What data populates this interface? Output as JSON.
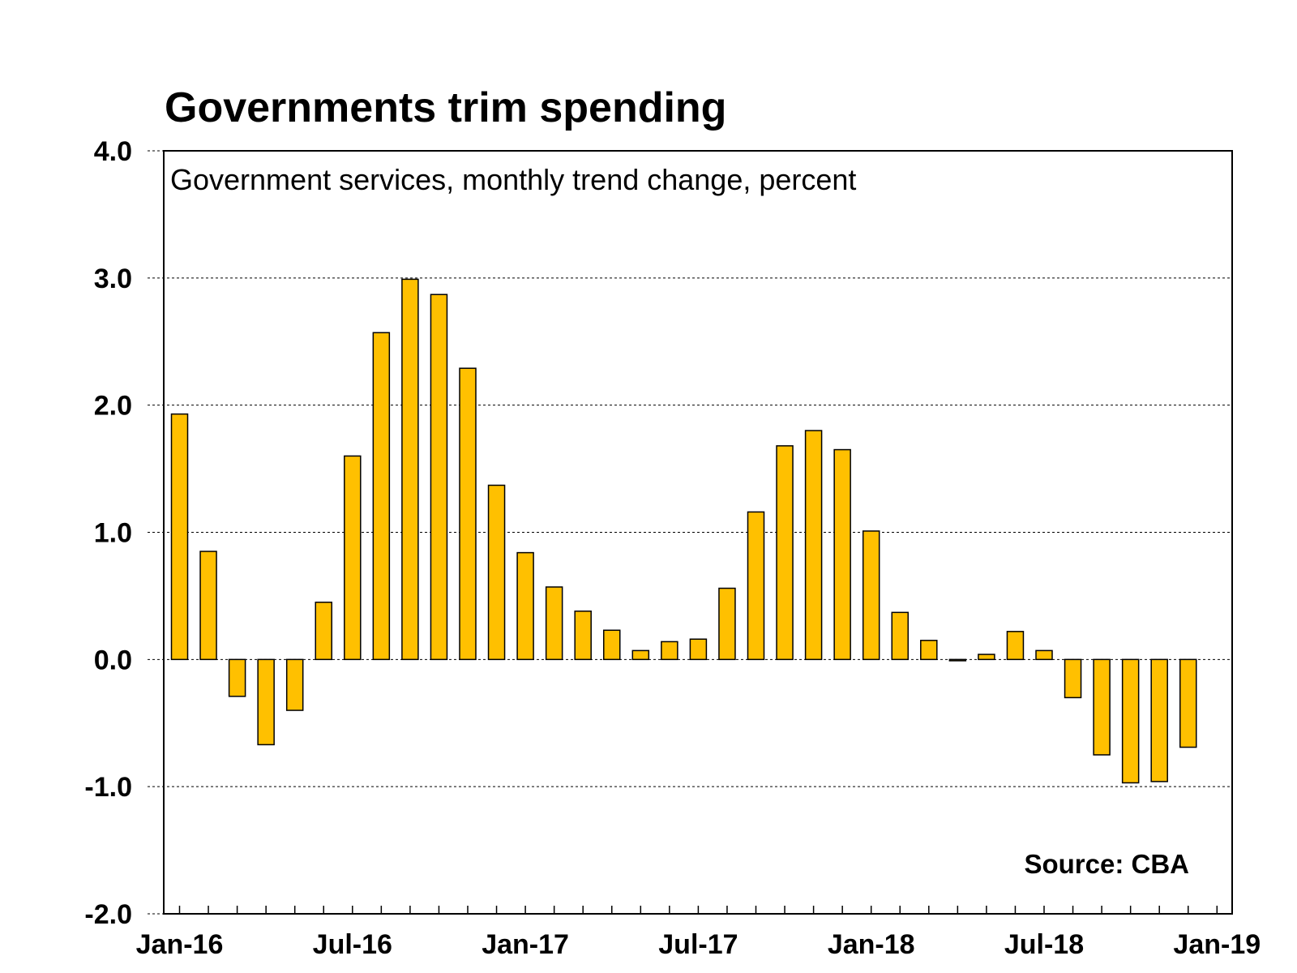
{
  "chart_data": {
    "type": "bar",
    "title": "Governments trim spending",
    "subtitle": "Government services, monthly trend change, percent",
    "source": "Source: CBA",
    "ylim": [
      -2.0,
      4.0
    ],
    "y_ticks": [
      4.0,
      3.0,
      2.0,
      1.0,
      0.0,
      -1.0,
      -2.0
    ],
    "y_tick_labels": [
      "4.0",
      "3.0",
      "2.0",
      "1.0",
      "0.0",
      "-1.0",
      "-2.0"
    ],
    "x_tick_labels": [
      "Jan-16",
      "Jul-16",
      "Jan-17",
      "Jul-17",
      "Jan-18",
      "Jul-18",
      "Jan-19"
    ],
    "grid": true,
    "bar_color": "#FFC000",
    "categories": [
      "Jan-16",
      "Feb-16",
      "Mar-16",
      "Apr-16",
      "May-16",
      "Jun-16",
      "Jul-16",
      "Aug-16",
      "Sep-16",
      "Oct-16",
      "Nov-16",
      "Dec-16",
      "Jan-17",
      "Feb-17",
      "Mar-17",
      "Apr-17",
      "May-17",
      "Jun-17",
      "Jul-17",
      "Aug-17",
      "Sep-17",
      "Oct-17",
      "Nov-17",
      "Dec-17",
      "Jan-18",
      "Feb-18",
      "Mar-18",
      "Apr-18",
      "May-18",
      "Jun-18",
      "Jul-18",
      "Aug-18",
      "Sep-18",
      "Oct-18",
      "Nov-18",
      "Dec-18"
    ],
    "values": [
      1.93,
      0.85,
      -0.29,
      -0.67,
      -0.4,
      0.45,
      1.6,
      2.57,
      2.99,
      2.87,
      2.29,
      1.37,
      0.84,
      0.57,
      0.38,
      0.23,
      0.07,
      0.14,
      0.16,
      0.56,
      1.16,
      1.68,
      1.8,
      1.65,
      1.01,
      0.37,
      0.15,
      -0.01,
      0.04,
      0.22,
      0.07,
      -0.3,
      -0.75,
      -0.97,
      -0.96,
      -0.69
    ]
  }
}
